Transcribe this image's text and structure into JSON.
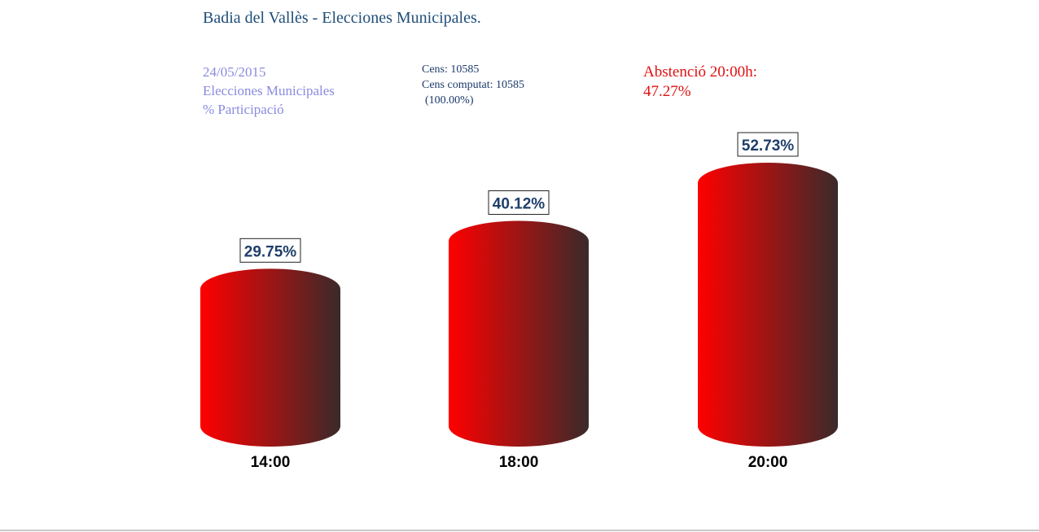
{
  "header": {
    "title": "Badia del Vallès - Elecciones Municipales."
  },
  "info": {
    "date": "24/05/2015",
    "election": "Elecciones Municipales",
    "metric": "% Participació",
    "cens": "Cens: 10585",
    "cens_computat": "Cens computat: 10585",
    "cens_pct": "(100.00%)",
    "abstention_label": "Abstenció 20:00h:",
    "abstention_value": "47.27%"
  },
  "colors": {
    "bar_light": "#ff0000",
    "bar_dark": "#3a2a2a",
    "label_text": "#1f3f6a",
    "accent_red": "#e01010"
  },
  "chart_data": {
    "type": "bar",
    "style": "3d-cylinder",
    "categories": [
      "14:00",
      "18:00",
      "20:00"
    ],
    "values": [
      29.75,
      40.12,
      52.73
    ],
    "data_labels": [
      "29.75%",
      "40.12%",
      "52.73%"
    ],
    "unit": "%",
    "grid": false,
    "legend": "none"
  }
}
